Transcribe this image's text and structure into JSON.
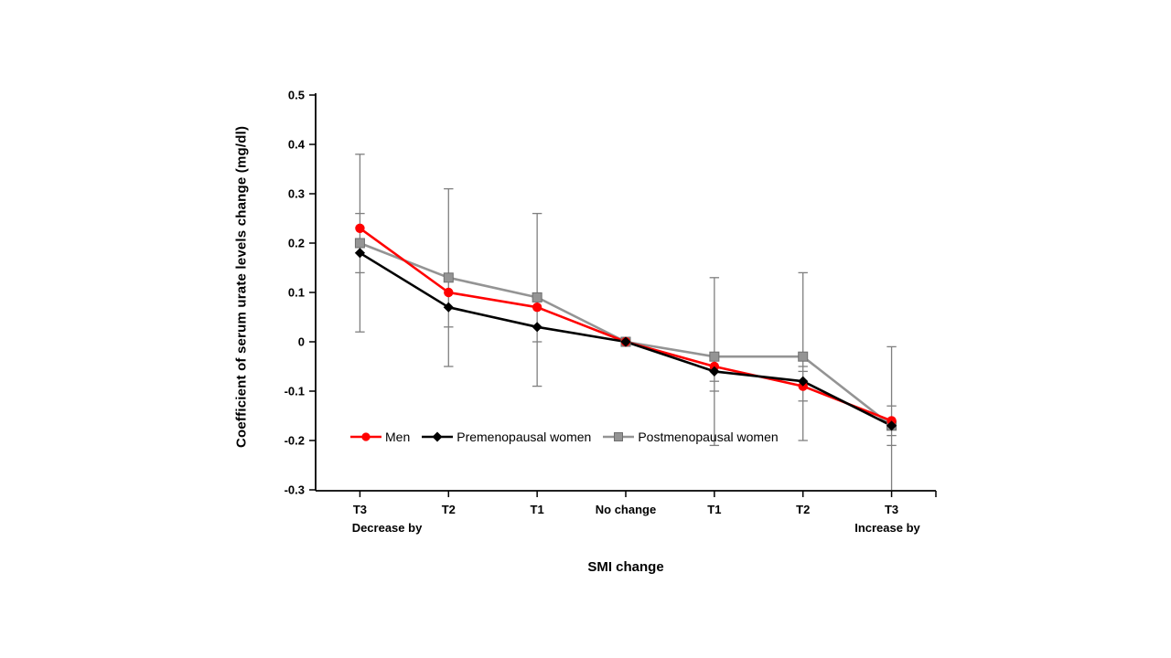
{
  "figure": {
    "background": "#ffffff"
  },
  "chart_data": {
    "type": "line",
    "title": "",
    "categories": [
      "T3",
      "T2",
      "T1",
      "No change",
      "T1",
      "T2",
      "T3"
    ],
    "xlabel": "SMI change",
    "ylabel": "Coefficient of serum urate levels change (mg/dl)",
    "x_sub_labels": {
      "left": "Decrease by",
      "right": "Increase by"
    },
    "ylim": [
      -0.3,
      0.5
    ],
    "ytick_labels": [
      "0.5",
      "0.4",
      "0.3",
      "0.2",
      "0.1",
      "0",
      "-0.1",
      "-0.2",
      "-0.3"
    ],
    "ytick_values": [
      0.5,
      0.4,
      0.3,
      0.2,
      0.1,
      0,
      -0.1,
      -0.2,
      -0.3
    ],
    "grid": false,
    "legend_position": "inside-lower-left",
    "axis_color": "#000000",
    "series": [
      {
        "name": "Men",
        "color": "#ff0000",
        "marker": "circle",
        "values": [
          0.23,
          0.1,
          0.07,
          0.0,
          -0.05,
          -0.09,
          -0.16
        ]
      },
      {
        "name": "Premenopausal women",
        "color": "#000000",
        "marker": "diamond",
        "values": [
          0.18,
          0.07,
          0.03,
          0.0,
          -0.06,
          -0.08,
          -0.17
        ]
      },
      {
        "name": "Postmenopausal women",
        "color": "#949494",
        "marker": "square",
        "values": [
          0.2,
          0.13,
          0.09,
          0.0,
          -0.03,
          -0.03,
          -0.17
        ]
      }
    ],
    "error_bars": {
      "color": "#7f7f7f",
      "per_category": [
        {
          "category": "T3 decrease",
          "min": 0.02,
          "max": 0.38,
          "caps": [
            0.38,
            0.26,
            0.14,
            0.02
          ]
        },
        {
          "category": "T2 decrease",
          "min": -0.05,
          "max": 0.31,
          "caps": [
            0.31,
            0.03,
            -0.05
          ]
        },
        {
          "category": "T1 decrease",
          "min": -0.09,
          "max": 0.26,
          "caps": [
            0.26,
            0.0,
            -0.09
          ]
        },
        {
          "category": "No change",
          "min": null,
          "max": null,
          "caps": []
        },
        {
          "category": "T1 increase",
          "min": -0.21,
          "max": 0.13,
          "caps": [
            0.13,
            -0.08,
            -0.1,
            -0.21
          ]
        },
        {
          "category": "T2 increase",
          "min": -0.2,
          "max": 0.14,
          "caps": [
            0.14,
            -0.05,
            -0.06,
            -0.12,
            -0.2
          ]
        },
        {
          "category": "T3 increase",
          "min": -0.3,
          "max": -0.01,
          "caps": [
            -0.01,
            -0.13,
            -0.19,
            -0.21
          ]
        }
      ]
    }
  }
}
